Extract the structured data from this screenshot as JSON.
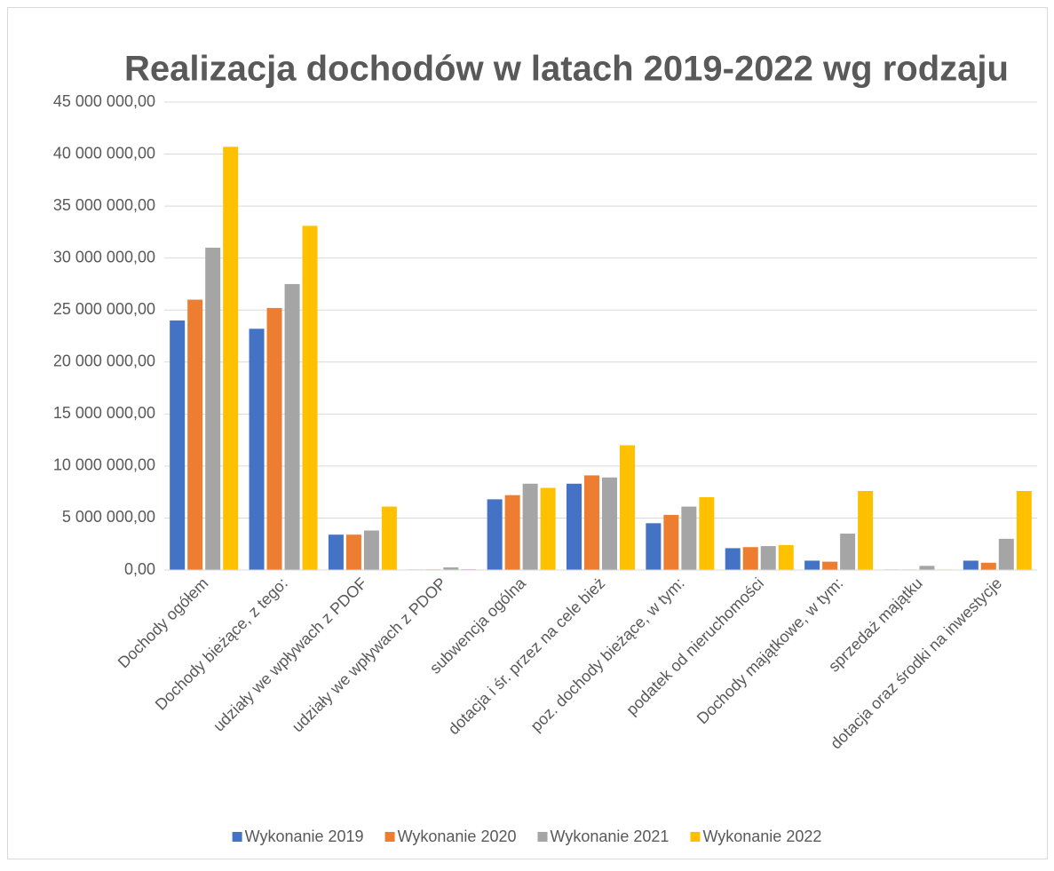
{
  "chart_data": {
    "type": "bar",
    "title": "Realizacja dochodów w latach 2019-2022 wg rodzaju",
    "categories": [
      "Dochody ogółem",
      "Dochody bieżące, z tego:",
      "udziały we wpływach z PDOF",
      "udziały we wpływach z PDOP",
      "subwencja ogólna",
      "dotacja i śr. przez na cele bież",
      "poz. dochody bieżące, w tym:",
      "podatek od nieruchomości",
      "Dochody majątkowe, w tym:",
      "sprzedaż majątku",
      "dotacja oraz środki na inwestycje"
    ],
    "series": [
      {
        "name": "Wykonanie 2019",
        "color": "#4472c4",
        "values": [
          24000000,
          23200000,
          3400000,
          50000,
          6800000,
          8300000,
          4500000,
          2100000,
          900000,
          50000,
          900000
        ]
      },
      {
        "name": "Wykonanie 2020",
        "color": "#ed7d31",
        "values": [
          26000000,
          25200000,
          3400000,
          60000,
          7200000,
          9100000,
          5300000,
          2200000,
          800000,
          50000,
          700000
        ]
      },
      {
        "name": "Wykonanie 2021",
        "color": "#a5a5a5",
        "values": [
          31000000,
          27500000,
          3800000,
          250000,
          8300000,
          8900000,
          6100000,
          2300000,
          3500000,
          400000,
          3000000
        ]
      },
      {
        "name": "Wykonanie 2022",
        "color": "#ffc000",
        "values": [
          40700000,
          33100000,
          6100000,
          80000,
          7900000,
          12000000,
          7000000,
          2400000,
          7600000,
          50000,
          7600000
        ]
      }
    ],
    "ylim": [
      0,
      45000000
    ],
    "yticks": [
      {
        "value": 0,
        "label": "0,00"
      },
      {
        "value": 5000000,
        "label": "5 000 000,00"
      },
      {
        "value": 10000000,
        "label": "10 000 000,00"
      },
      {
        "value": 15000000,
        "label": "15 000 000,00"
      },
      {
        "value": 20000000,
        "label": "20 000 000,00"
      },
      {
        "value": 25000000,
        "label": "25 000 000,00"
      },
      {
        "value": 30000000,
        "label": "30 000 000,00"
      },
      {
        "value": 35000000,
        "label": "35 000 000,00"
      },
      {
        "value": 40000000,
        "label": "40 000 000,00"
      },
      {
        "value": 45000000,
        "label": "45 000 000,00"
      }
    ],
    "grid": true,
    "legend": "bottom"
  }
}
